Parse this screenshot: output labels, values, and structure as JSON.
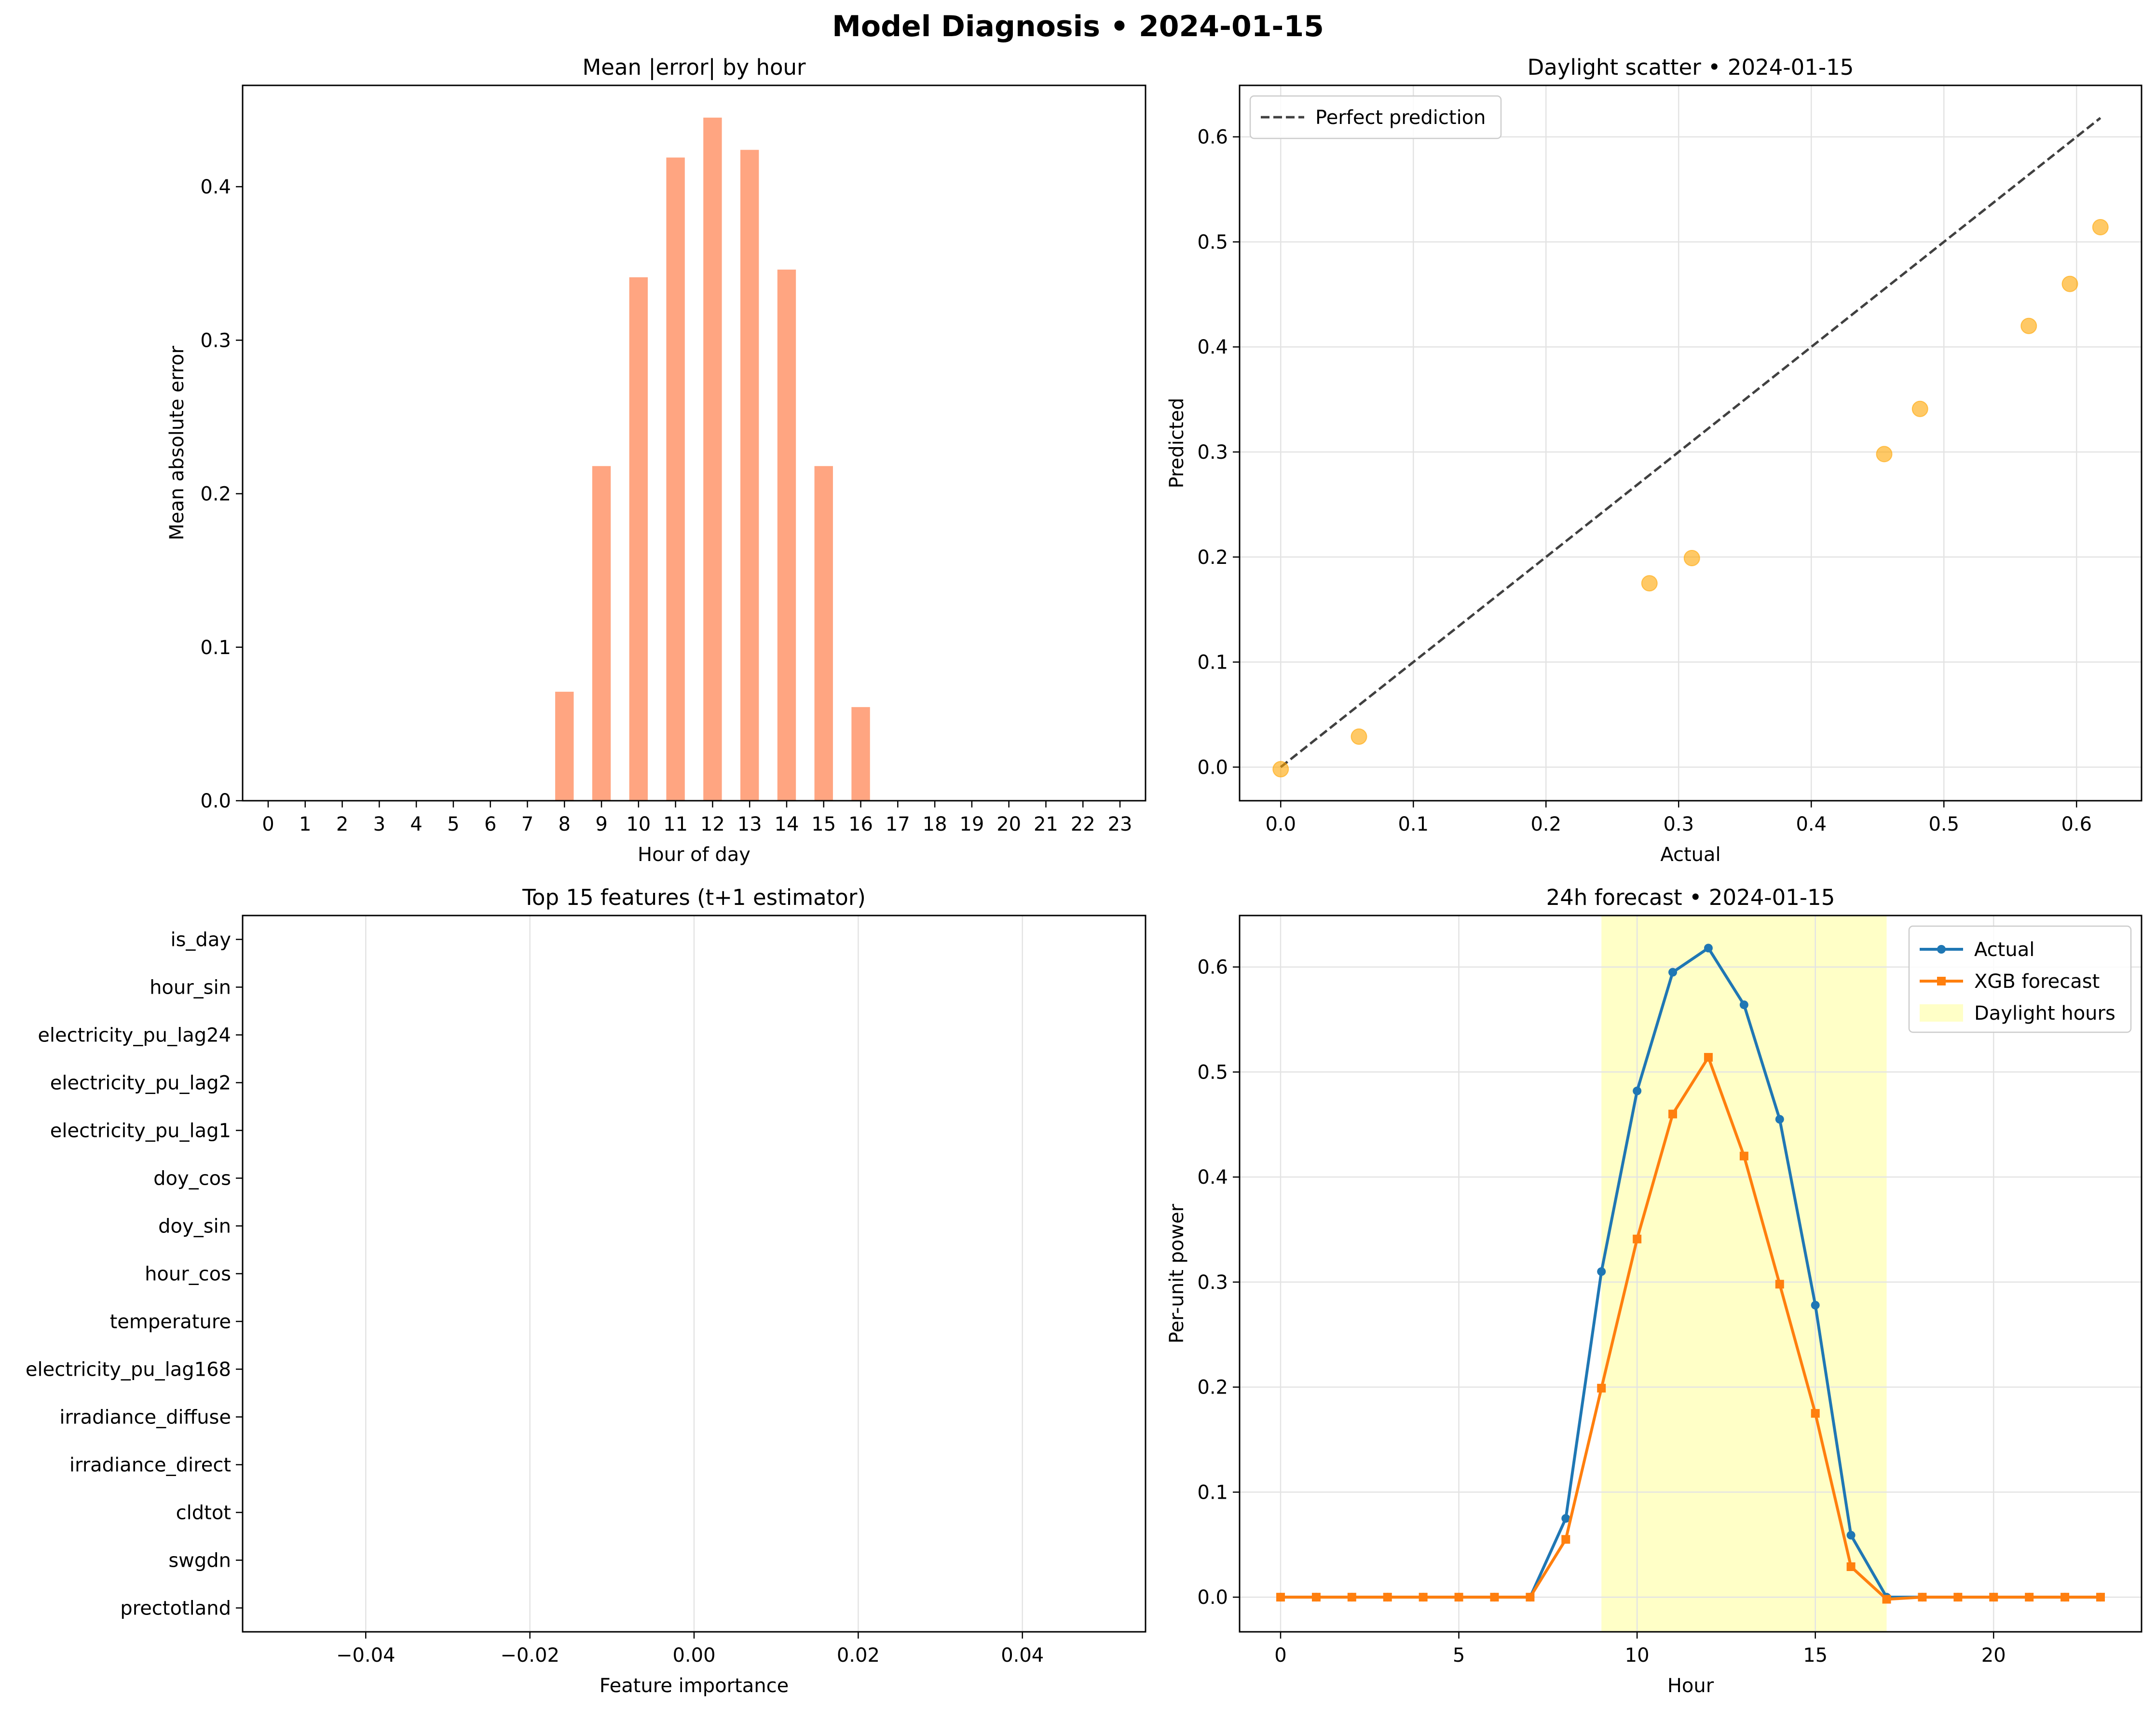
{
  "suptitle": "Model Diagnosis • 2024-01-15",
  "chart_data": [
    {
      "type": "bar",
      "title": "Mean |error| by hour",
      "xlabel": "Hour of day",
      "ylabel": "Mean absolute error",
      "categories": [
        "0",
        "1",
        "2",
        "3",
        "4",
        "5",
        "6",
        "7",
        "8",
        "9",
        "10",
        "11",
        "12",
        "13",
        "14",
        "15",
        "16",
        "17",
        "18",
        "19",
        "20",
        "21",
        "22",
        "23"
      ],
      "values": [
        0,
        0,
        0,
        0,
        0,
        0,
        0,
        0,
        0.071,
        0.218,
        0.341,
        0.419,
        0.445,
        0.424,
        0.346,
        0.218,
        0.061,
        0,
        0,
        0,
        0,
        0,
        0,
        0
      ],
      "ylim": [
        0,
        0.466
      ],
      "yticks": [
        0.0,
        0.1,
        0.2,
        0.3,
        0.4
      ],
      "ytick_labels": [
        "0.0",
        "0.1",
        "0.2",
        "0.3",
        "0.4"
      ],
      "color": "#FFA07A",
      "grid": false
    },
    {
      "type": "scatter",
      "title": "Daylight scatter • 2024-01-15",
      "xlabel": "Actual",
      "ylabel": "Predicted",
      "points": [
        [
          0.0,
          -0.002
        ],
        [
          0.059,
          0.029
        ],
        [
          0.278,
          0.175
        ],
        [
          0.31,
          0.199
        ],
        [
          0.455,
          0.298
        ],
        [
          0.482,
          0.341
        ],
        [
          0.564,
          0.42
        ],
        [
          0.595,
          0.46
        ],
        [
          0.618,
          0.514
        ]
      ],
      "reference_line": {
        "name": "Perfect prediction",
        "x": [
          0.0,
          0.618
        ],
        "y": [
          0.0,
          0.618
        ]
      },
      "xlim": [
        -0.031,
        0.649
      ],
      "ylim": [
        -0.032,
        0.649
      ],
      "xticks": [
        0.0,
        0.1,
        0.2,
        0.3,
        0.4,
        0.5,
        0.6
      ],
      "xtick_labels": [
        "0.0",
        "0.1",
        "0.2",
        "0.3",
        "0.4",
        "0.5",
        "0.6"
      ],
      "yticks": [
        0.0,
        0.1,
        0.2,
        0.3,
        0.4,
        0.5,
        0.6
      ],
      "ytick_labels": [
        "0.0",
        "0.1",
        "0.2",
        "0.3",
        "0.4",
        "0.5",
        "0.6"
      ],
      "point_color": "#FFA500",
      "line_color": "#404040",
      "legend": "top-left",
      "grid": true
    },
    {
      "type": "bar",
      "orientation": "horizontal",
      "title": "Top 15 features (t+1 estimator)",
      "xlabel": "Feature importance",
      "categories": [
        "is_day",
        "hour_sin",
        "electricity_pu_lag24",
        "electricity_pu_lag2",
        "electricity_pu_lag1",
        "doy_cos",
        "doy_sin",
        "hour_cos",
        "temperature",
        "electricity_pu_lag168",
        "irradiance_diffuse",
        "irradiance_direct",
        "cldtot",
        "swgdn",
        "prectotland"
      ],
      "values": [
        0,
        0,
        0,
        0,
        0,
        0,
        0,
        0,
        0,
        0,
        0,
        0,
        0,
        0,
        0
      ],
      "xlim": [
        -0.055,
        0.055
      ],
      "xticks": [
        -0.04,
        -0.02,
        0.0,
        0.02,
        0.04
      ],
      "xtick_labels": [
        "−0.04",
        "−0.02",
        "0.00",
        "0.02",
        "0.04"
      ],
      "grid": true
    },
    {
      "type": "line",
      "title": "24h forecast • 2024-01-15",
      "xlabel": "Hour",
      "ylabel": "Per-unit power",
      "x": [
        0,
        1,
        2,
        3,
        4,
        5,
        6,
        7,
        8,
        9,
        10,
        11,
        12,
        13,
        14,
        15,
        16,
        17,
        18,
        19,
        20,
        21,
        22,
        23
      ],
      "series": [
        {
          "name": "Actual",
          "color": "#1f77b4",
          "marker": "circle",
          "values": [
            0,
            0,
            0,
            0,
            0,
            0,
            0,
            0,
            0.075,
            0.31,
            0.482,
            0.595,
            0.618,
            0.564,
            0.455,
            0.278,
            0.059,
            0,
            0,
            0,
            0,
            0,
            0,
            0
          ]
        },
        {
          "name": "XGB forecast",
          "color": "#ff7f0e",
          "marker": "square",
          "values": [
            0,
            0,
            0,
            0,
            0,
            0,
            0,
            0,
            0.055,
            0.199,
            0.341,
            0.46,
            0.514,
            0.42,
            0.298,
            0.175,
            0.029,
            -0.002,
            0,
            0,
            0,
            0,
            0,
            0
          ]
        }
      ],
      "shaded_span": {
        "name": "Daylight hours",
        "x_start": 9,
        "x_end": 17,
        "color": "#FFFF99"
      },
      "xlim": [
        -1.15,
        24.15
      ],
      "ylim": [
        -0.033,
        0.649
      ],
      "xticks": [
        0,
        5,
        10,
        15,
        20
      ],
      "xtick_labels": [
        "0",
        "5",
        "10",
        "15",
        "20"
      ],
      "yticks": [
        0.0,
        0.1,
        0.2,
        0.3,
        0.4,
        0.5,
        0.6
      ],
      "ytick_labels": [
        "0.0",
        "0.1",
        "0.2",
        "0.3",
        "0.4",
        "0.5",
        "0.6"
      ],
      "legend": "top-right",
      "grid": true
    }
  ]
}
